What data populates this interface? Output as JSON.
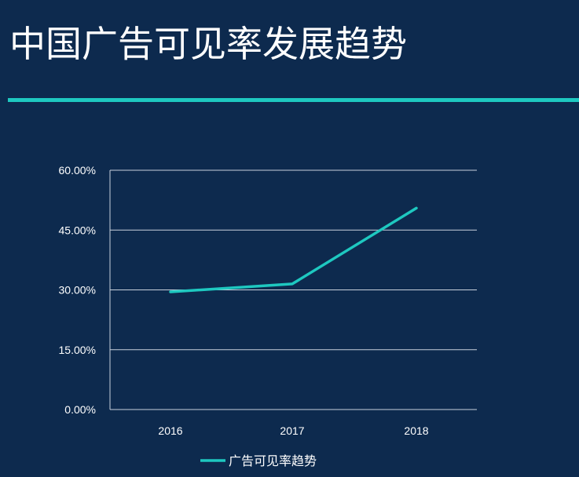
{
  "slide": {
    "title": "中国广告可见率发展趋势",
    "accent_color": "#1ec8c0",
    "background_color": "#0d2a4e"
  },
  "chart_data": {
    "type": "line",
    "x": [
      "2016",
      "2017",
      "2018"
    ],
    "series": [
      {
        "name": "广告可见率趋势",
        "values": [
          29.5,
          31.5,
          50.5
        ],
        "color": "#1ec8c0"
      }
    ],
    "ylim": [
      0,
      60
    ],
    "yticks": [
      0,
      15,
      30,
      45,
      60
    ],
    "ytick_labels": [
      "0.00%",
      "15.00%",
      "30.00%",
      "45.00%",
      "60.00%"
    ],
    "grid": true,
    "legend_position": "bottom"
  }
}
